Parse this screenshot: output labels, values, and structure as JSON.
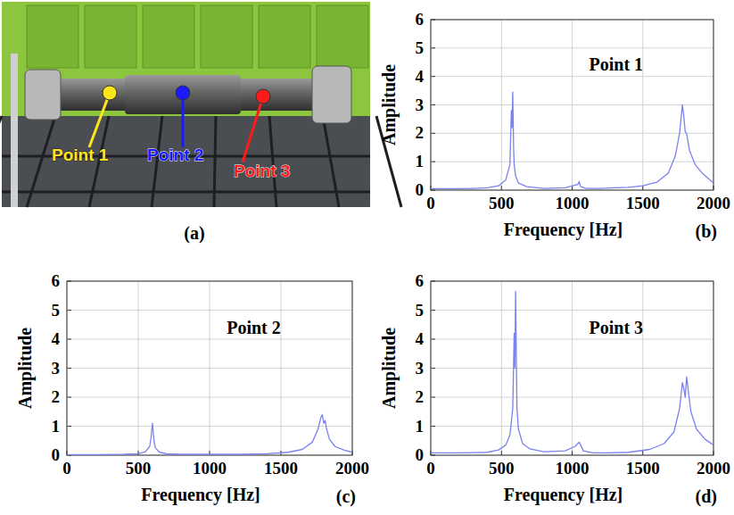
{
  "photo": {
    "label": "(a)",
    "points": [
      {
        "label": "Point 1",
        "color": "#ffe61a"
      },
      {
        "label": "Point 2",
        "color": "#1a1aff"
      },
      {
        "label": "Point 3",
        "color": "#ff1a1a"
      }
    ]
  },
  "chart_data": [
    {
      "type": "line",
      "title": "Point 1",
      "panel": "(b)",
      "x_label": "Frequency [Hz]",
      "y_label": "Amplitude",
      "x": [
        0,
        100,
        200,
        300,
        400,
        480,
        530,
        560,
        570,
        575,
        580,
        583,
        586,
        590,
        600,
        620,
        680,
        800,
        950,
        1040,
        1050,
        1060,
        1100,
        1200,
        1300,
        1400,
        1500,
        1600,
        1680,
        1730,
        1760,
        1780,
        1790,
        1800,
        1810,
        1830,
        1870,
        1920,
        2000
      ],
      "values": [
        0.05,
        0.05,
        0.05,
        0.06,
        0.08,
        0.15,
        0.35,
        0.9,
        2.8,
        2.2,
        3.45,
        2.5,
        1.5,
        0.9,
        0.5,
        0.25,
        0.12,
        0.06,
        0.08,
        0.2,
        0.3,
        0.12,
        0.06,
        0.06,
        0.08,
        0.1,
        0.15,
        0.28,
        0.6,
        1.2,
        2.0,
        3.0,
        2.6,
        2.05,
        2.0,
        1.4,
        0.9,
        0.6,
        0.25
      ],
      "color": "#7a82f0",
      "xlim": [
        0,
        2000
      ],
      "ylim": [
        0,
        6
      ],
      "xticks": [
        0,
        500,
        1000,
        1500,
        2000
      ],
      "yticks": [
        0,
        1,
        2,
        3,
        4,
        5,
        6
      ],
      "grid": true
    },
    {
      "type": "line",
      "title": "Point 2",
      "panel": "(c)",
      "x_label": "Frequency [Hz]",
      "y_label": "Amplitude",
      "x": [
        0,
        200,
        400,
        500,
        550,
        580,
        590,
        595,
        600,
        605,
        610,
        620,
        650,
        700,
        800,
        1000,
        1200,
        1400,
        1550,
        1650,
        1720,
        1760,
        1780,
        1790,
        1800,
        1810,
        1820,
        1840,
        1880,
        1940,
        2000
      ],
      "values": [
        0.02,
        0.02,
        0.03,
        0.05,
        0.12,
        0.3,
        0.6,
        0.9,
        1.1,
        0.8,
        0.5,
        0.25,
        0.1,
        0.05,
        0.03,
        0.03,
        0.03,
        0.05,
        0.1,
        0.2,
        0.45,
        0.9,
        1.3,
        1.4,
        1.1,
        1.2,
        0.9,
        0.55,
        0.3,
        0.18,
        0.1
      ],
      "color": "#7a82f0",
      "xlim": [
        0,
        2000
      ],
      "ylim": [
        0,
        6
      ],
      "xticks": [
        0,
        500,
        1000,
        1500,
        2000
      ],
      "yticks": [
        0,
        1,
        2,
        3,
        4,
        5,
        6
      ],
      "grid": true
    },
    {
      "type": "line",
      "title": "Point 3",
      "panel": "(d)",
      "x_label": "Frequency [Hz]",
      "y_label": "Amplitude",
      "x": [
        0,
        100,
        200,
        300,
        400,
        480,
        530,
        560,
        580,
        590,
        595,
        600,
        605,
        610,
        620,
        650,
        700,
        800,
        950,
        1020,
        1040,
        1050,
        1060,
        1080,
        1150,
        1250,
        1400,
        1550,
        1650,
        1720,
        1760,
        1780,
        1790,
        1800,
        1810,
        1820,
        1840,
        1880,
        1940,
        2000
      ],
      "values": [
        0.08,
        0.08,
        0.08,
        0.09,
        0.1,
        0.18,
        0.35,
        0.7,
        1.6,
        4.2,
        3.0,
        5.65,
        3.5,
        1.6,
        0.9,
        0.4,
        0.22,
        0.12,
        0.15,
        0.3,
        0.4,
        0.45,
        0.35,
        0.15,
        0.08,
        0.08,
        0.1,
        0.2,
        0.4,
        0.8,
        1.6,
        2.5,
        2.3,
        2.0,
        2.7,
        2.3,
        1.5,
        0.9,
        0.55,
        0.35
      ],
      "color": "#7a82f0",
      "xlim": [
        0,
        2000
      ],
      "ylim": [
        0,
        6
      ],
      "xticks": [
        0,
        500,
        1000,
        1500,
        2000
      ],
      "yticks": [
        0,
        1,
        2,
        3,
        4,
        5,
        6
      ],
      "grid": true
    }
  ]
}
